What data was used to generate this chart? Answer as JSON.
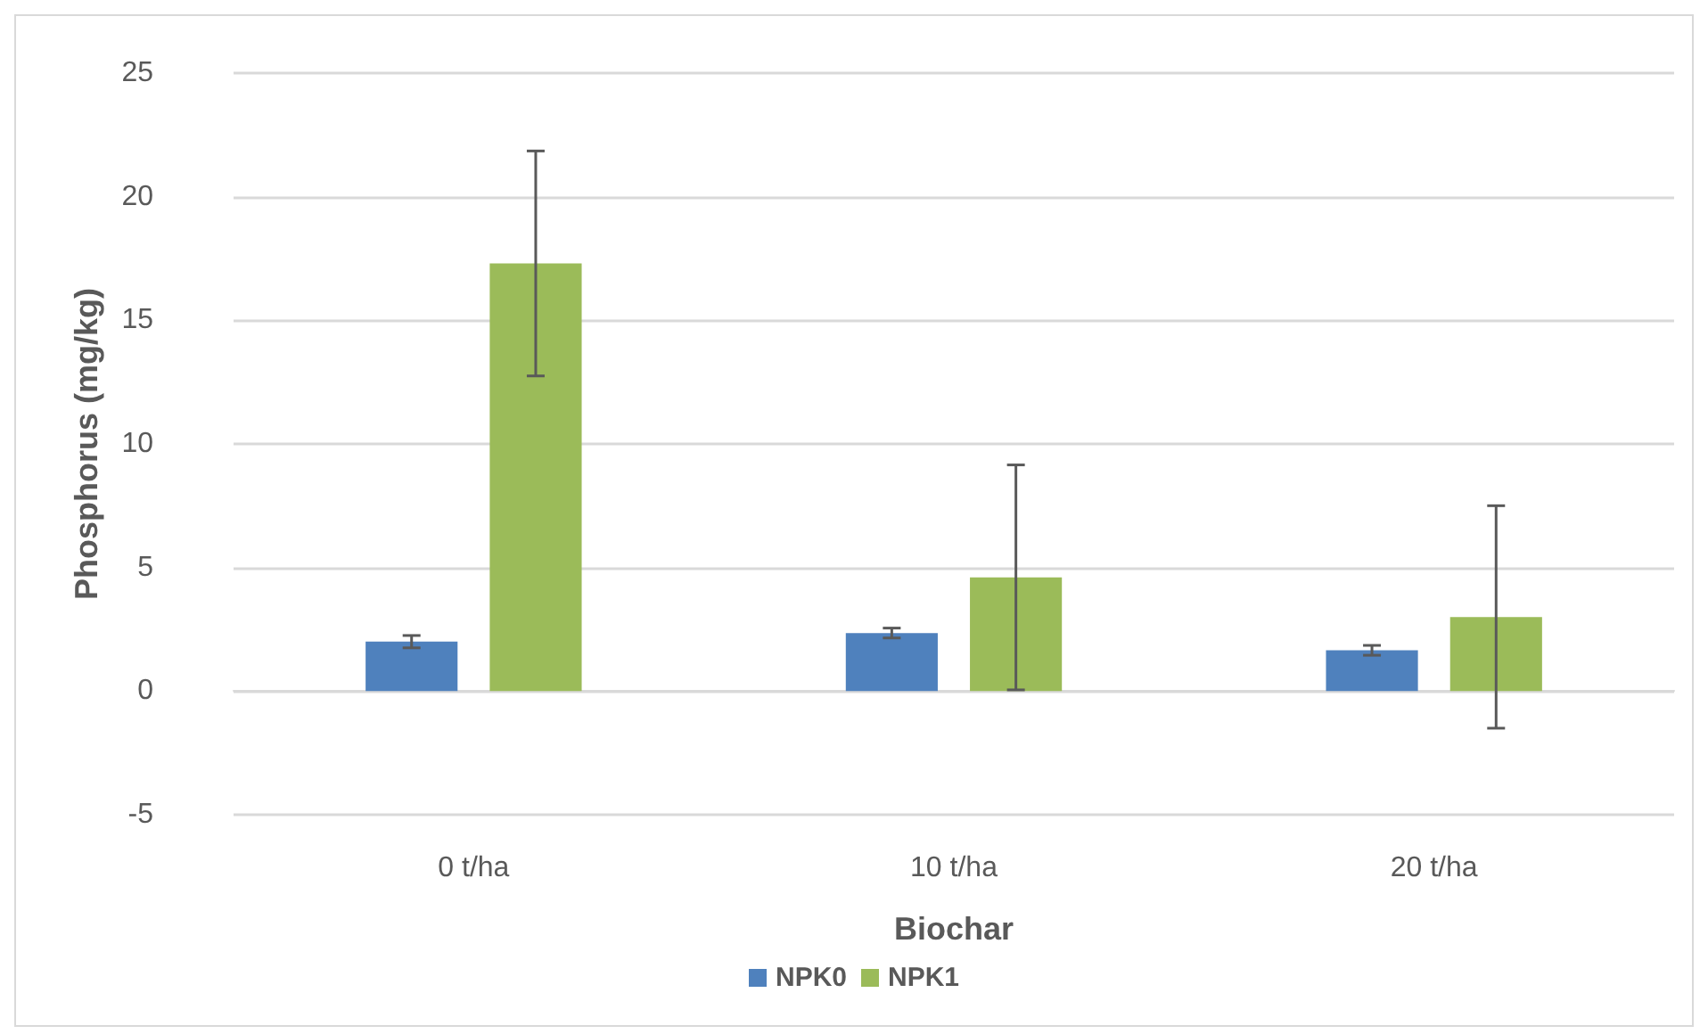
{
  "chart_data": {
    "type": "bar",
    "xlabel": "Biochar",
    "ylabel": "Phosphorus (mg/kg)",
    "categories": [
      "0 t/ha",
      "10 t/ha",
      "20 t/ha"
    ],
    "series": [
      {
        "name": "NPK0",
        "color": "#4f81bd",
        "values": [
          2.0,
          2.35,
          1.65
        ],
        "errors": [
          0.25,
          0.2,
          0.2
        ]
      },
      {
        "name": "NPK1",
        "color": "#9bbb59",
        "values": [
          17.3,
          4.6,
          3.0
        ],
        "errors": [
          4.55,
          4.55,
          4.5
        ]
      }
    ],
    "ylim": [
      -5,
      25
    ],
    "yticks": [
      -5,
      0,
      5,
      10,
      15,
      20,
      25
    ],
    "grid": "y",
    "legend": "bottom"
  }
}
